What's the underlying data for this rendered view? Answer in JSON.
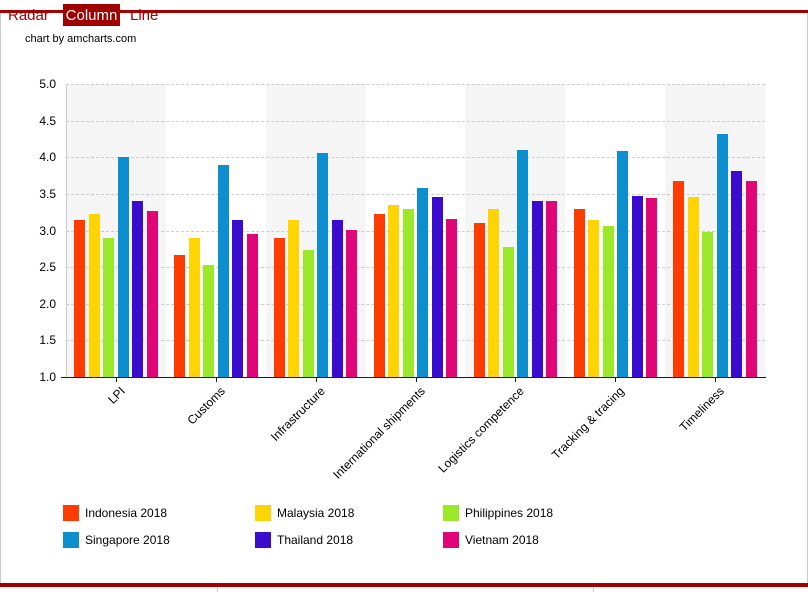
{
  "tabs": {
    "items": [
      {
        "label": "Radar",
        "active": false
      },
      {
        "label": "Column",
        "active": true
      },
      {
        "label": "Line",
        "active": false
      }
    ]
  },
  "credit": "chart by amcharts.com",
  "colors": {
    "accent": "#a00000",
    "grid": "#cccccc",
    "band": "#f5f5f5",
    "axis": "#1c1c1c"
  },
  "chart_data": {
    "type": "bar",
    "title": "",
    "xlabel": "",
    "ylabel": "",
    "categories": [
      "LPI",
      "Customs",
      "Infrastructure",
      "International shipments",
      "Logistics competence",
      "Tracking & tracing",
      "Timeliness"
    ],
    "series": [
      {
        "name": "Indonesia 2018",
        "color": "#ff3c00",
        "values": [
          3.15,
          2.67,
          2.9,
          3.23,
          3.1,
          3.3,
          3.67
        ]
      },
      {
        "name": "Malaysia 2018",
        "color": "#ffd400",
        "values": [
          3.22,
          2.9,
          3.15,
          3.35,
          3.3,
          3.15,
          3.46
        ]
      },
      {
        "name": "Philippines 2018",
        "color": "#9be82a",
        "values": [
          2.9,
          2.53,
          2.73,
          3.29,
          2.78,
          3.06,
          2.98
        ]
      },
      {
        "name": "Singapore 2018",
        "color": "#0d8ecf",
        "values": [
          4.0,
          3.89,
          4.06,
          3.58,
          4.1,
          4.08,
          4.32
        ]
      },
      {
        "name": "Thailand 2018",
        "color": "#3a0dce",
        "values": [
          3.41,
          3.14,
          3.14,
          3.46,
          3.41,
          3.47,
          3.81
        ]
      },
      {
        "name": "Vietnam 2018",
        "color": "#e00677",
        "values": [
          3.27,
          2.95,
          3.01,
          3.16,
          3.4,
          3.45,
          3.67
        ]
      }
    ],
    "ylim": [
      1.0,
      5.0
    ],
    "yticks": [
      1.0,
      1.5,
      2.0,
      2.5,
      3.0,
      3.5,
      4.0,
      4.5,
      5.0
    ],
    "grid": true,
    "alternating_bands": true,
    "legend_position": "bottom"
  }
}
